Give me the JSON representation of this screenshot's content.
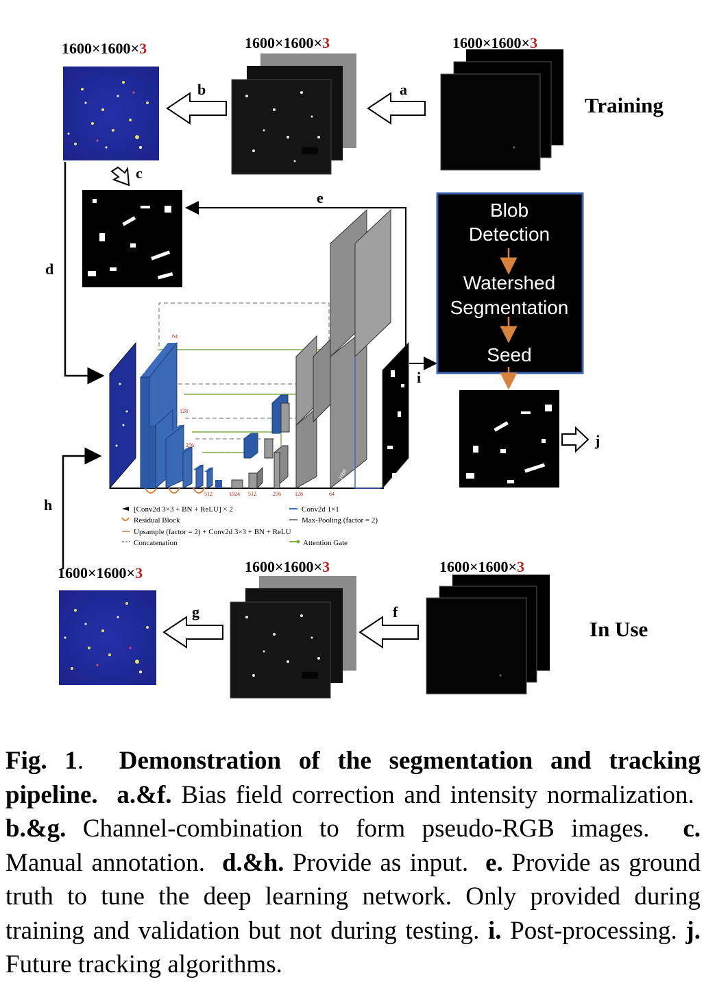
{
  "dims": {
    "train_rgb": {
      "text": "1600×1600×",
      "three": "3"
    },
    "train_norm": {
      "text": "1600×1600×",
      "three": "3"
    },
    "train_raw": {
      "text": "1600×1600×",
      "three": "3"
    },
    "use_rgb": {
      "text": "1600×1600×",
      "three": "3"
    },
    "use_norm": {
      "text": "1600×1600×",
      "three": "3"
    },
    "use_raw": {
      "text": "1600×1600×",
      "three": "3"
    }
  },
  "side_labels": {
    "training": "Training",
    "in_use": "In Use"
  },
  "letters": {
    "a": "a",
    "b": "b",
    "c": "c",
    "d": "d",
    "e": "e",
    "f": "f",
    "g": "g",
    "h": "h",
    "i": "i",
    "j": "j"
  },
  "postproc": {
    "line1": "Blob",
    "line2": "Detection",
    "line3": "Watershed",
    "line4": "Segmentation",
    "line5": "Seed"
  },
  "unet_numbers": {
    "n1600a": "1600",
    "n64": "64",
    "n128": "128",
    "n256": "256",
    "n512a": "512",
    "b512": "512",
    "b1024": "1024",
    "b512b": "512",
    "b256": "256",
    "b128": "128",
    "b64": "64",
    "n1600b": "1600"
  },
  "legend": {
    "conv": "[Conv2d 3×3 + BN + ReLU] × 2",
    "residual": "Residual Block",
    "upsample": "Upsample (factor = 2) + Conv2d 3×3 + BN + ReLU",
    "concat": "Concatenation",
    "conv1": "Conv2d 1×1",
    "maxpool": "Max-Pooling (factor = 2)",
    "attention": "Attention Gate"
  },
  "caption": {
    "fig_label": "Fig. 1",
    "title": "Demonstration of the segmentation and tracking pipeline.",
    "af_label": "a.&f.",
    "af_text": "Bias field correction and intensity normal­ization.",
    "bg_label": "b.&g.",
    "bg_text": "Channel-combination to form pseudo-RGB images.",
    "c_label": "c.",
    "c_text": "Manual annotation.",
    "dh_label": "d.&h.",
    "dh_text": "Provide as input.",
    "e_label": "e.",
    "e_text": "Provide as ground truth to tune the deep learning network. Only provided during training and validation but not during testing.",
    "i_label": "i.",
    "i_text": "Post-processing.",
    "j_label": "j.",
    "j_text": "Future tracking algorithms."
  },
  "colors": {
    "blue": "#2d5aa8",
    "red": "#c0221f",
    "orange": "#d9823b",
    "green": "#7fb04a",
    "navy": "#1f2f9a"
  }
}
